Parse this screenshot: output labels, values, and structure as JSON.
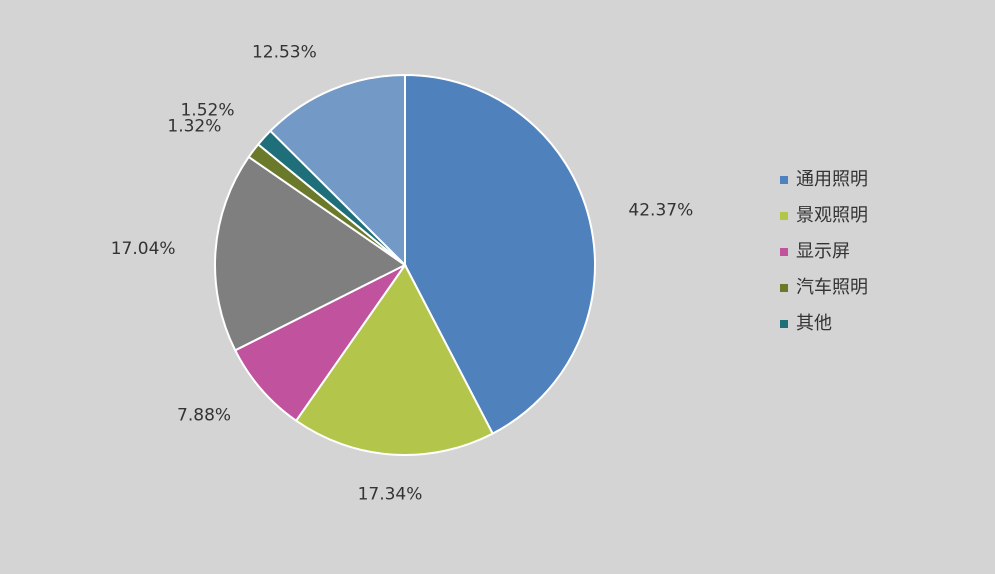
{
  "chart_data": {
    "type": "pie",
    "categories": [
      "通用照明",
      "景观照明",
      "显示屏",
      null,
      "汽车照明",
      "其他",
      null
    ],
    "values": [
      42.37,
      17.34,
      7.88,
      17.04,
      1.32,
      1.52,
      12.53
    ],
    "value_labels": [
      "42.37%",
      "17.34%",
      "7.88%",
      "17.04%",
      "1.32%",
      "1.52%",
      "12.53%"
    ],
    "colors": [
      "#4f81bd",
      "#b3c64b",
      "#c0529e",
      "#7f7f7f",
      "#6b7a2a",
      "#1f6f7a",
      "#7399c6"
    ],
    "legend": "right"
  }
}
